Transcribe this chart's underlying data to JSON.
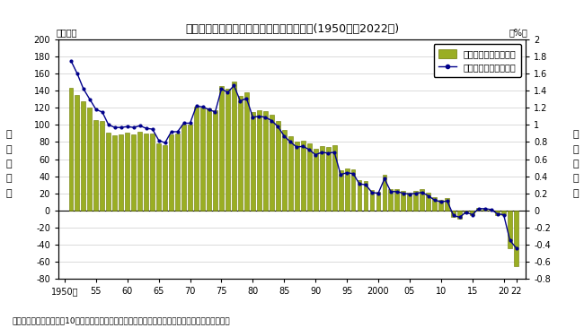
{
  "title": "総人口の人口増減数及び人口増減率の推移(1950年〜2022年)",
  "note": "注）人口増減率は、前年10月から当年９月までの人口増減数を前年人口（期首人口）で除したもの",
  "ylabel_left": "人\n口\n増\n減\n数",
  "ylabel_right": "人\n口\n増\n減\n率",
  "xlabel_unit_left": "（万人）",
  "xlabel_unit_right": "（%）",
  "xtick_labels": [
    "1950年",
    "55",
    "60",
    "65",
    "70",
    "75",
    "80",
    "85",
    "90",
    "95",
    "2000",
    "05",
    "10",
    "15",
    "20",
    "22"
  ],
  "xtick_positions": [
    1950,
    1955,
    1960,
    1965,
    1970,
    1975,
    1980,
    1985,
    1990,
    1995,
    2000,
    2005,
    2010,
    2015,
    2020,
    2022
  ],
  "bar_years": [
    1951,
    1952,
    1953,
    1954,
    1955,
    1956,
    1957,
    1958,
    1959,
    1960,
    1961,
    1962,
    1963,
    1964,
    1965,
    1966,
    1967,
    1968,
    1969,
    1970,
    1971,
    1972,
    1973,
    1974,
    1975,
    1976,
    1977,
    1978,
    1979,
    1980,
    1981,
    1982,
    1983,
    1984,
    1985,
    1986,
    1987,
    1988,
    1989,
    1990,
    1991,
    1992,
    1993,
    1994,
    1995,
    1996,
    1997,
    1998,
    1999,
    2000,
    2001,
    2002,
    2003,
    2004,
    2005,
    2006,
    2007,
    2008,
    2009,
    2010,
    2011,
    2012,
    2013,
    2014,
    2015,
    2016,
    2017,
    2018,
    2019,
    2020,
    2021,
    2022
  ],
  "bar_values": [
    143,
    135,
    128,
    120,
    106,
    105,
    91,
    88,
    89,
    91,
    89,
    92,
    90,
    90,
    78,
    76,
    89,
    90,
    100,
    100,
    121,
    120,
    119,
    117,
    145,
    142,
    151,
    134,
    138,
    115,
    117,
    116,
    112,
    105,
    94,
    87,
    80,
    82,
    78,
    72,
    75,
    74,
    76,
    47,
    49,
    48,
    35,
    34,
    24,
    22,
    42,
    25,
    25,
    23,
    21,
    23,
    25,
    21,
    15,
    12,
    14,
    -8,
    -10,
    -3,
    -6,
    3,
    2,
    1,
    -5,
    -6,
    -44,
    -65
  ],
  "line_years": [
    1951,
    1952,
    1953,
    1954,
    1955,
    1956,
    1957,
    1958,
    1959,
    1960,
    1961,
    1962,
    1963,
    1964,
    1965,
    1966,
    1967,
    1968,
    1969,
    1970,
    1971,
    1972,
    1973,
    1974,
    1975,
    1976,
    1977,
    1978,
    1979,
    1980,
    1981,
    1982,
    1983,
    1984,
    1985,
    1986,
    1987,
    1988,
    1989,
    1990,
    1991,
    1992,
    1993,
    1994,
    1995,
    1996,
    1997,
    1998,
    1999,
    2000,
    2001,
    2002,
    2003,
    2004,
    2005,
    2006,
    2007,
    2008,
    2009,
    2010,
    2011,
    2012,
    2013,
    2014,
    2015,
    2016,
    2017,
    2018,
    2019,
    2020,
    2021,
    2022
  ],
  "line_values": [
    1.75,
    1.6,
    1.42,
    1.3,
    1.18,
    1.15,
    1.0,
    0.97,
    0.97,
    0.98,
    0.97,
    0.99,
    0.96,
    0.95,
    0.82,
    0.79,
    0.92,
    0.92,
    1.02,
    1.02,
    1.22,
    1.21,
    1.18,
    1.15,
    1.42,
    1.38,
    1.46,
    1.28,
    1.31,
    1.09,
    1.1,
    1.09,
    1.05,
    0.98,
    0.87,
    0.8,
    0.74,
    0.75,
    0.71,
    0.65,
    0.68,
    0.67,
    0.68,
    0.42,
    0.44,
    0.43,
    0.31,
    0.3,
    0.21,
    0.2,
    0.37,
    0.22,
    0.22,
    0.2,
    0.19,
    0.2,
    0.21,
    0.17,
    0.12,
    0.1,
    0.11,
    -0.06,
    -0.08,
    -0.02,
    -0.05,
    0.02,
    0.02,
    0.01,
    -0.04,
    -0.05,
    -0.35,
    -0.44
  ],
  "bar_color_face": "#9aae23",
  "bar_color_edge": "#6b7a00",
  "line_color": "#00008b",
  "marker_color": "#00008b",
  "ylim_left": [
    -80,
    200
  ],
  "ylim_right": [
    -0.8,
    2.0
  ],
  "yticks_left": [
    -80,
    -60,
    -40,
    -20,
    0,
    20,
    40,
    60,
    80,
    100,
    120,
    140,
    160,
    180,
    200
  ],
  "yticks_right": [
    -0.8,
    -0.6,
    -0.4,
    -0.2,
    0.0,
    0.2,
    0.4,
    0.6,
    0.8,
    1.0,
    1.2,
    1.4,
    1.6,
    1.8,
    2.0
  ],
  "legend_bar_label": "人口増減数（左目盛）",
  "legend_line_label": "人口増減率（右目盛）",
  "background_color": "#ffffff",
  "grid_color": "#cccccc",
  "figsize": [
    6.5,
    3.66
  ],
  "dpi": 100
}
